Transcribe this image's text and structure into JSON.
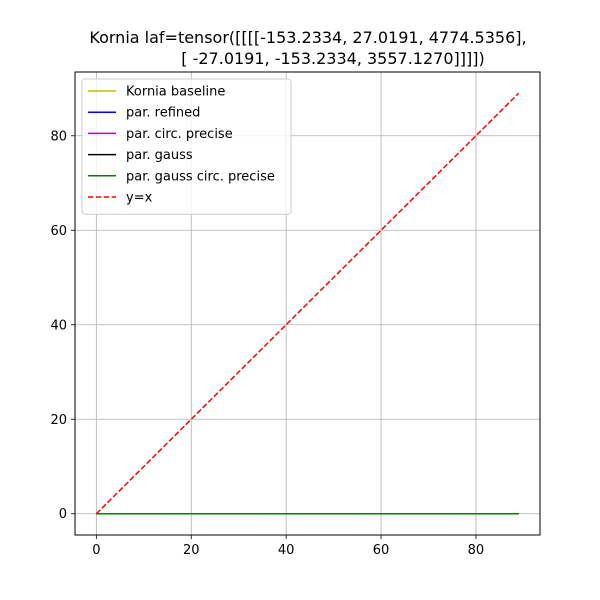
{
  "chart_data": {
    "type": "line",
    "title_line1": "Kornia laf=tensor([[[[-153.2334,   27.0191, 4774.5356],",
    "title_line2": "[ -27.0191, -153.2334, 3557.1270]]]])",
    "xlabel": "",
    "ylabel": "",
    "xlim": [
      -4.5,
      93.5
    ],
    "ylim": [
      -4.5,
      93.5
    ],
    "xticks": [
      0,
      20,
      40,
      60,
      80
    ],
    "yticks": [
      0,
      20,
      40,
      60,
      80
    ],
    "xtick_labels": [
      "0",
      "20",
      "40",
      "60",
      "80"
    ],
    "ytick_labels": [
      "0",
      "20",
      "40",
      "60",
      "80"
    ],
    "grid": true,
    "legend_placement": "upper-left",
    "series": [
      {
        "name": "Kornia baseline",
        "color": "#bfbf00",
        "dash": "solid",
        "x": [
          0,
          89
        ],
        "y": [
          0,
          0
        ]
      },
      {
        "name": "par. refined",
        "color": "#0000ff",
        "dash": "solid",
        "x": [
          0,
          89
        ],
        "y": [
          0,
          0
        ]
      },
      {
        "name": "par. circ. precise",
        "color": "#bf00bf",
        "dash": "solid",
        "x": [
          0,
          89
        ],
        "y": [
          0,
          0
        ]
      },
      {
        "name": "par. gauss",
        "color": "#000000",
        "dash": "solid",
        "x": [
          0,
          89
        ],
        "y": [
          0,
          0
        ]
      },
      {
        "name": "par. gauss circ. precise",
        "color": "#008000",
        "dash": "solid",
        "x": [
          0,
          89
        ],
        "y": [
          0,
          0
        ]
      },
      {
        "name": "y=x",
        "color": "#ff0000",
        "dash": "dashed",
        "x": [
          0,
          89
        ],
        "y": [
          0,
          89
        ]
      }
    ]
  }
}
